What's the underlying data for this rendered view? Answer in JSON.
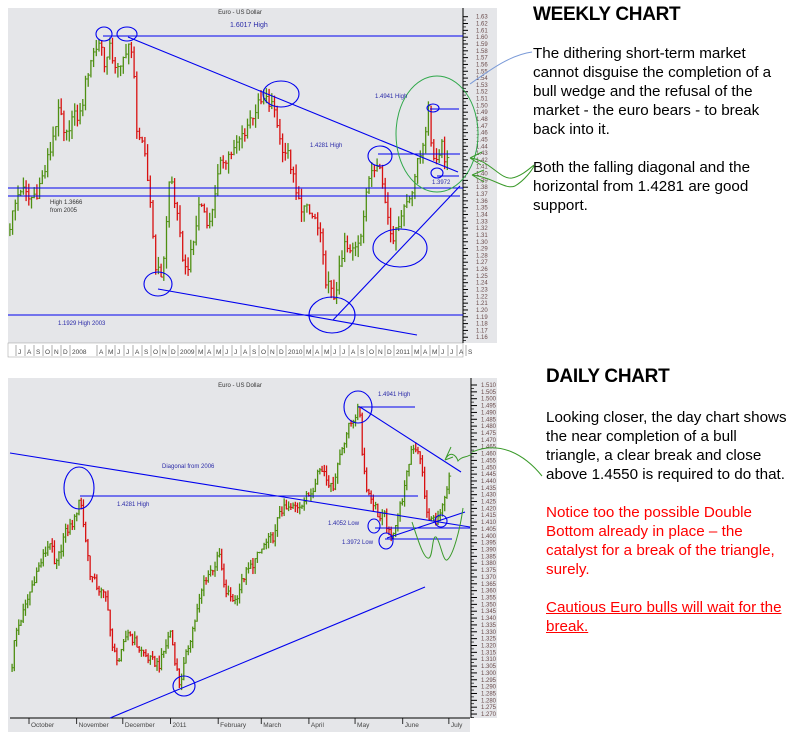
{
  "weekly": {
    "heading": "WEEKLY CHART",
    "paragraph1": "The dithering short-term market cannot disguise the completion of a bull wedge and the refusal of the market  - the euro bears -  to break back into it.",
    "paragraph2": "Both the falling diagonal and the horizontal from 1.4281 are good support."
  },
  "daily": {
    "heading": "DAILY CHART",
    "paragraph1": " Looking closer, the day chart shows the near completion of a bull triangle, a clear break and close above 1.4550 is required to do that.",
    "paragraph2": "Notice too the possible Double Bottom already in place – the catalyst for a break of the triangle, surely.",
    "paragraph3": "Cautious Euro bulls will wait for the break."
  },
  "colors": {
    "up": "#4e8f12",
    "down": "#d81010",
    "annotation": "#0000ee",
    "highlight": "#2fa84a"
  },
  "chart_data": [
    {
      "type": "bar",
      "name": "weekly",
      "title": "Euro - US Dollar",
      "x_unit": "months since Jul 2007",
      "ylim": [
        1.16,
        1.63
      ],
      "y_ticks": [
        "1.63",
        "1.62",
        "1.61",
        "1.60",
        "1.59",
        "1.58",
        "1.57",
        "1.56",
        "1.55",
        "1.54",
        "1.53",
        "1.52",
        "1.51",
        "1.50",
        "1.49",
        "1.48",
        "1.47",
        "1.46",
        "1.45",
        "1.44",
        "1.43",
        "1.42",
        "1.41",
        "1.40",
        "1.39",
        "1.38",
        "1.37",
        "1.36",
        "1.35",
        "1.34",
        "1.33",
        "1.32",
        "1.31",
        "1.30",
        "1.29",
        "1.28",
        "1.27",
        "1.26",
        "1.25",
        "1.24",
        "1.23",
        "1.22",
        "1.21",
        "1.20",
        "1.19",
        "1.18",
        "1.17",
        "1.16"
      ],
      "x_ticks": [
        [
          "J",
          0
        ],
        [
          "A",
          1
        ],
        [
          "S",
          2
        ],
        [
          "O",
          3
        ],
        [
          "N",
          4
        ],
        [
          "D",
          5
        ],
        [
          "2008",
          6
        ],
        [
          "A",
          9
        ],
        [
          "M",
          10
        ],
        [
          "J",
          11
        ],
        [
          "J",
          12
        ],
        [
          "A",
          13
        ],
        [
          "S",
          14
        ],
        [
          "O",
          15
        ],
        [
          "N",
          16
        ],
        [
          "D",
          17
        ],
        [
          "2009",
          18
        ],
        [
          "M",
          20
        ],
        [
          "A",
          21
        ],
        [
          "M",
          22
        ],
        [
          "J",
          23
        ],
        [
          "J",
          24
        ],
        [
          "A",
          25
        ],
        [
          "S",
          26
        ],
        [
          "O",
          27
        ],
        [
          "N",
          28
        ],
        [
          "D",
          29
        ],
        [
          "2010",
          30
        ],
        [
          "M",
          32
        ],
        [
          "A",
          33
        ],
        [
          "M",
          34
        ],
        [
          "J",
          35
        ],
        [
          "J",
          36
        ],
        [
          "A",
          37
        ],
        [
          "S",
          38
        ],
        [
          "O",
          39
        ],
        [
          "N",
          40
        ],
        [
          "D",
          41
        ],
        [
          "2011",
          42
        ],
        [
          "M",
          44
        ],
        [
          "A",
          45
        ],
        [
          "M",
          46
        ],
        [
          "J",
          47
        ],
        [
          "J",
          48
        ],
        [
          "A",
          49
        ],
        [
          "S",
          50
        ]
      ],
      "price_path": [
        [
          -0.9,
          1.325
        ],
        [
          0.2,
          1.38
        ],
        [
          1.3,
          1.361
        ],
        [
          2.2,
          1.376
        ],
        [
          3.0,
          1.405
        ],
        [
          3.6,
          1.435
        ],
        [
          4.1,
          1.471
        ],
        [
          4.7,
          1.493
        ],
        [
          5.2,
          1.442
        ],
        [
          5.8,
          1.479
        ],
        [
          6.9,
          1.486
        ],
        [
          8.0,
          1.566
        ],
        [
          9.1,
          1.596
        ],
        [
          9.7,
          1.559
        ],
        [
          10.2,
          1.581
        ],
        [
          11.3,
          1.544
        ],
        [
          12.2,
          1.596
        ],
        [
          12.8,
          1.559
        ],
        [
          13.2,
          1.471
        ],
        [
          14.1,
          1.42
        ],
        [
          14.7,
          1.361
        ],
        [
          15.2,
          1.273
        ],
        [
          15.8,
          1.244
        ],
        [
          16.3,
          1.288
        ],
        [
          16.9,
          1.405
        ],
        [
          17.4,
          1.361
        ],
        [
          18.0,
          1.303
        ],
        [
          18.6,
          1.259
        ],
        [
          19.3,
          1.281
        ],
        [
          20.2,
          1.361
        ],
        [
          21.3,
          1.325
        ],
        [
          21.9,
          1.376
        ],
        [
          22.7,
          1.42
        ],
        [
          24.1,
          1.435
        ],
        [
          25.2,
          1.464
        ],
        [
          26.3,
          1.493
        ],
        [
          27.4,
          1.508
        ],
        [
          28.6,
          1.493
        ],
        [
          29.1,
          1.449
        ],
        [
          30.2,
          1.42
        ],
        [
          31.0,
          1.361
        ],
        [
          31.9,
          1.347
        ],
        [
          33.0,
          1.332
        ],
        [
          33.6,
          1.303
        ],
        [
          34.1,
          1.251
        ],
        [
          35.0,
          1.215
        ],
        [
          35.8,
          1.259
        ],
        [
          36.3,
          1.295
        ],
        [
          36.9,
          1.281
        ],
        [
          38.0,
          1.31
        ],
        [
          38.6,
          1.354
        ],
        [
          39.1,
          1.405
        ],
        [
          40.0,
          1.423
        ],
        [
          40.8,
          1.361
        ],
        [
          41.3,
          1.325
        ],
        [
          41.9,
          1.303
        ],
        [
          42.4,
          1.339
        ],
        [
          43.6,
          1.369
        ],
        [
          44.1,
          1.398
        ],
        [
          44.7,
          1.427
        ],
        [
          45.6,
          1.489
        ],
        [
          46.0,
          1.435
        ],
        [
          46.6,
          1.417
        ],
        [
          47.0,
          1.456
        ],
        [
          47.4,
          1.42
        ],
        [
          47.8,
          1.435
        ]
      ],
      "annotations": {
        "high_2008": "1.6017 High",
        "high_2009": "1.4941 High",
        "high_2010": "1.4281 High",
        "high_2005_line1": "High 1.3666",
        "high_2005_line2": "from 2005",
        "high_2003": "1.1929 High 2003",
        "low_2011": "1.3972"
      }
    },
    {
      "type": "bar",
      "name": "daily",
      "title": "Euro - US Dollar",
      "x_unit": "days since 1 Oct 2010",
      "ylim": [
        1.27,
        1.51
      ],
      "y_ticks": [
        "1.510",
        "1.505",
        "1.500",
        "1.495",
        "1.490",
        "1.485",
        "1.480",
        "1.475",
        "1.470",
        "1.465",
        "1.460",
        "1.455",
        "1.450",
        "1.445",
        "1.440",
        "1.435",
        "1.430",
        "1.425",
        "1.420",
        "1.415",
        "1.410",
        "1.405",
        "1.400",
        "1.395",
        "1.390",
        "1.385",
        "1.380",
        "1.375",
        "1.370",
        "1.365",
        "1.360",
        "1.355",
        "1.350",
        "1.345",
        "1.340",
        "1.335",
        "1.330",
        "1.325",
        "1.320",
        "1.315",
        "1.310",
        "1.305",
        "1.300",
        "1.295",
        "1.290",
        "1.285",
        "1.280",
        "1.275",
        "1.270"
      ],
      "x_ticks": [
        [
          "October",
          0
        ],
        [
          "November",
          31
        ],
        [
          "December",
          61
        ],
        [
          "2011",
          92
        ],
        [
          "February",
          123
        ],
        [
          "March",
          151
        ],
        [
          "April",
          182
        ],
        [
          "May",
          212
        ],
        [
          "June",
          243
        ],
        [
          "July",
          273
        ]
      ],
      "price_path": [
        [
          -11,
          1.306
        ],
        [
          -9,
          1.328
        ],
        [
          -3,
          1.346
        ],
        [
          4,
          1.371
        ],
        [
          14,
          1.397
        ],
        [
          17,
          1.375
        ],
        [
          23,
          1.401
        ],
        [
          30,
          1.412
        ],
        [
          33,
          1.43
        ],
        [
          36,
          1.404
        ],
        [
          40,
          1.371
        ],
        [
          46,
          1.36
        ],
        [
          51,
          1.353
        ],
        [
          54,
          1.317
        ],
        [
          59,
          1.309
        ],
        [
          64,
          1.331
        ],
        [
          72,
          1.317
        ],
        [
          79,
          1.309
        ],
        [
          85,
          1.306
        ],
        [
          92,
          1.331
        ],
        [
          95,
          1.309
        ],
        [
          98,
          1.291
        ],
        [
          103,
          1.317
        ],
        [
          108,
          1.339
        ],
        [
          114,
          1.368
        ],
        [
          121,
          1.379
        ],
        [
          124,
          1.386
        ],
        [
          127,
          1.36
        ],
        [
          134,
          1.353
        ],
        [
          140,
          1.371
        ],
        [
          147,
          1.382
        ],
        [
          153,
          1.393
        ],
        [
          160,
          1.401
        ],
        [
          163,
          1.419
        ],
        [
          168,
          1.419
        ],
        [
          175,
          1.422
        ],
        [
          179,
          1.426
        ],
        [
          184,
          1.433
        ],
        [
          188,
          1.448
        ],
        [
          192,
          1.448
        ],
        [
          197,
          1.433
        ],
        [
          202,
          1.459
        ],
        [
          207,
          1.477
        ],
        [
          212,
          1.488
        ],
        [
          215,
          1.493
        ],
        [
          217,
          1.455
        ],
        [
          220,
          1.433
        ],
        [
          225,
          1.422
        ],
        [
          228,
          1.412
        ],
        [
          231,
          1.415
        ],
        [
          235,
          1.397
        ],
        [
          239,
          1.412
        ],
        [
          244,
          1.433
        ],
        [
          249,
          1.466
        ],
        [
          253,
          1.463
        ],
        [
          256,
          1.444
        ],
        [
          259,
          1.412
        ],
        [
          262,
          1.412
        ],
        [
          266,
          1.412
        ],
        [
          269,
          1.42
        ],
        [
          272,
          1.433
        ],
        [
          274,
          1.448
        ]
      ],
      "annotations": {
        "high": "1.4941 High",
        "diagonal": "Diagonal from 2006",
        "high_nov": "1.4281 High",
        "low_1": "1.4052 Low",
        "low_2": "1.3972 Low"
      }
    }
  ]
}
